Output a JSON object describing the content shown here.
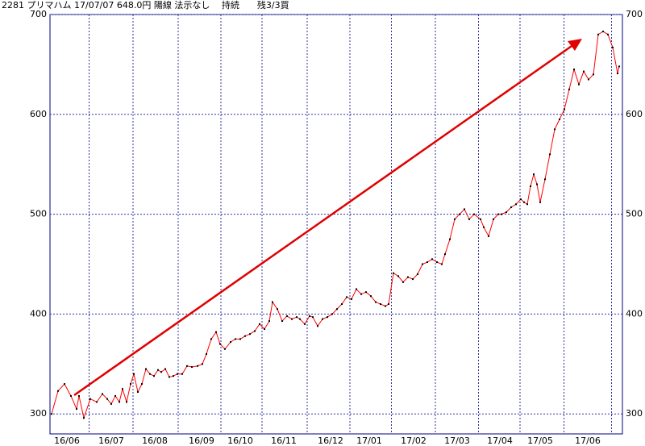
{
  "chart_data": {
    "type": "line",
    "title": "2281 プリマハム 17/07/07 648.0円 陽線 法示なし　 持続　　残3/3買",
    "x": [
      0,
      8,
      16,
      24,
      31,
      34,
      40,
      48,
      56,
      63,
      69,
      74,
      79,
      84,
      88,
      93,
      98,
      102,
      107,
      112,
      117,
      122,
      127,
      132,
      136,
      141,
      146,
      151,
      156,
      162,
      168,
      174,
      181,
      187,
      192,
      198,
      204,
      209,
      215,
      222,
      228,
      234,
      240,
      246,
      252,
      258,
      264,
      270,
      274,
      280,
      286,
      292,
      298,
      304,
      308,
      314,
      320,
      324,
      330,
      336,
      342,
      348,
      354,
      360,
      366,
      372,
      378,
      384,
      390,
      396,
      402,
      408,
      414,
      418,
      424,
      430,
      436,
      442,
      448,
      454,
      460,
      466,
      472,
      478,
      484,
      488,
      494,
      500,
      506,
      512,
      518,
      524,
      532,
      536,
      542,
      548,
      554,
      558,
      564,
      570,
      576,
      582,
      586,
      590,
      594,
      598,
      602,
      606,
      612,
      618,
      624,
      630,
      636,
      642,
      648,
      654,
      660,
      666,
      672,
      678,
      684,
      690,
      696,
      702,
      704
    ],
    "series": [
      {
        "name": "2281",
        "color": "#ff0000",
        "marker_color": "#000000",
        "values": [
          300,
          323,
          330,
          318,
          305,
          318,
          296,
          315,
          312,
          320,
          315,
          310,
          318,
          312,
          325,
          312,
          330,
          340,
          322,
          330,
          345,
          340,
          338,
          344,
          342,
          345,
          337,
          338,
          340,
          340,
          348,
          347,
          348,
          350,
          360,
          375,
          382,
          370,
          365,
          372,
          375,
          375,
          378,
          380,
          383,
          390,
          385,
          393,
          412,
          405,
          393,
          398,
          395,
          397,
          395,
          390,
          398,
          397,
          388,
          395,
          397,
          400,
          405,
          410,
          417,
          415,
          425,
          420,
          422,
          418,
          412,
          410,
          408,
          410,
          441,
          438,
          432,
          437,
          435,
          440,
          450,
          452,
          455,
          452,
          450,
          460,
          475,
          495,
          500,
          505,
          495,
          500,
          495,
          487,
          478,
          495,
          500,
          500,
          502,
          507,
          510,
          515,
          512,
          510,
          528,
          540,
          530,
          512,
          535,
          560,
          585,
          595,
          605,
          625,
          645,
          630,
          643,
          635,
          640,
          680,
          683,
          680,
          667,
          641,
          648
        ]
      }
    ],
    "xlim": [
      -2,
      708
    ],
    "xticks": [
      {
        "value": 19,
        "label": "16/06"
      },
      {
        "value": 74,
        "label": "16/07"
      },
      {
        "value": 128,
        "label": "16/08"
      },
      {
        "value": 186,
        "label": "16/09"
      },
      {
        "value": 234,
        "label": "16/10"
      },
      {
        "value": 288,
        "label": "16/11"
      },
      {
        "value": 346,
        "label": "16/12"
      },
      {
        "value": 394,
        "label": "17/01"
      },
      {
        "value": 449,
        "label": "17/02"
      },
      {
        "value": 503,
        "label": "17/03"
      },
      {
        "value": 556,
        "label": "17/04"
      },
      {
        "value": 606,
        "label": "17/05"
      },
      {
        "value": 665,
        "label": "17/06"
      }
    ],
    "ylim": [
      280,
      700
    ],
    "yticks": [
      300,
      400,
      500,
      600,
      700
    ],
    "grid": true
  }
}
